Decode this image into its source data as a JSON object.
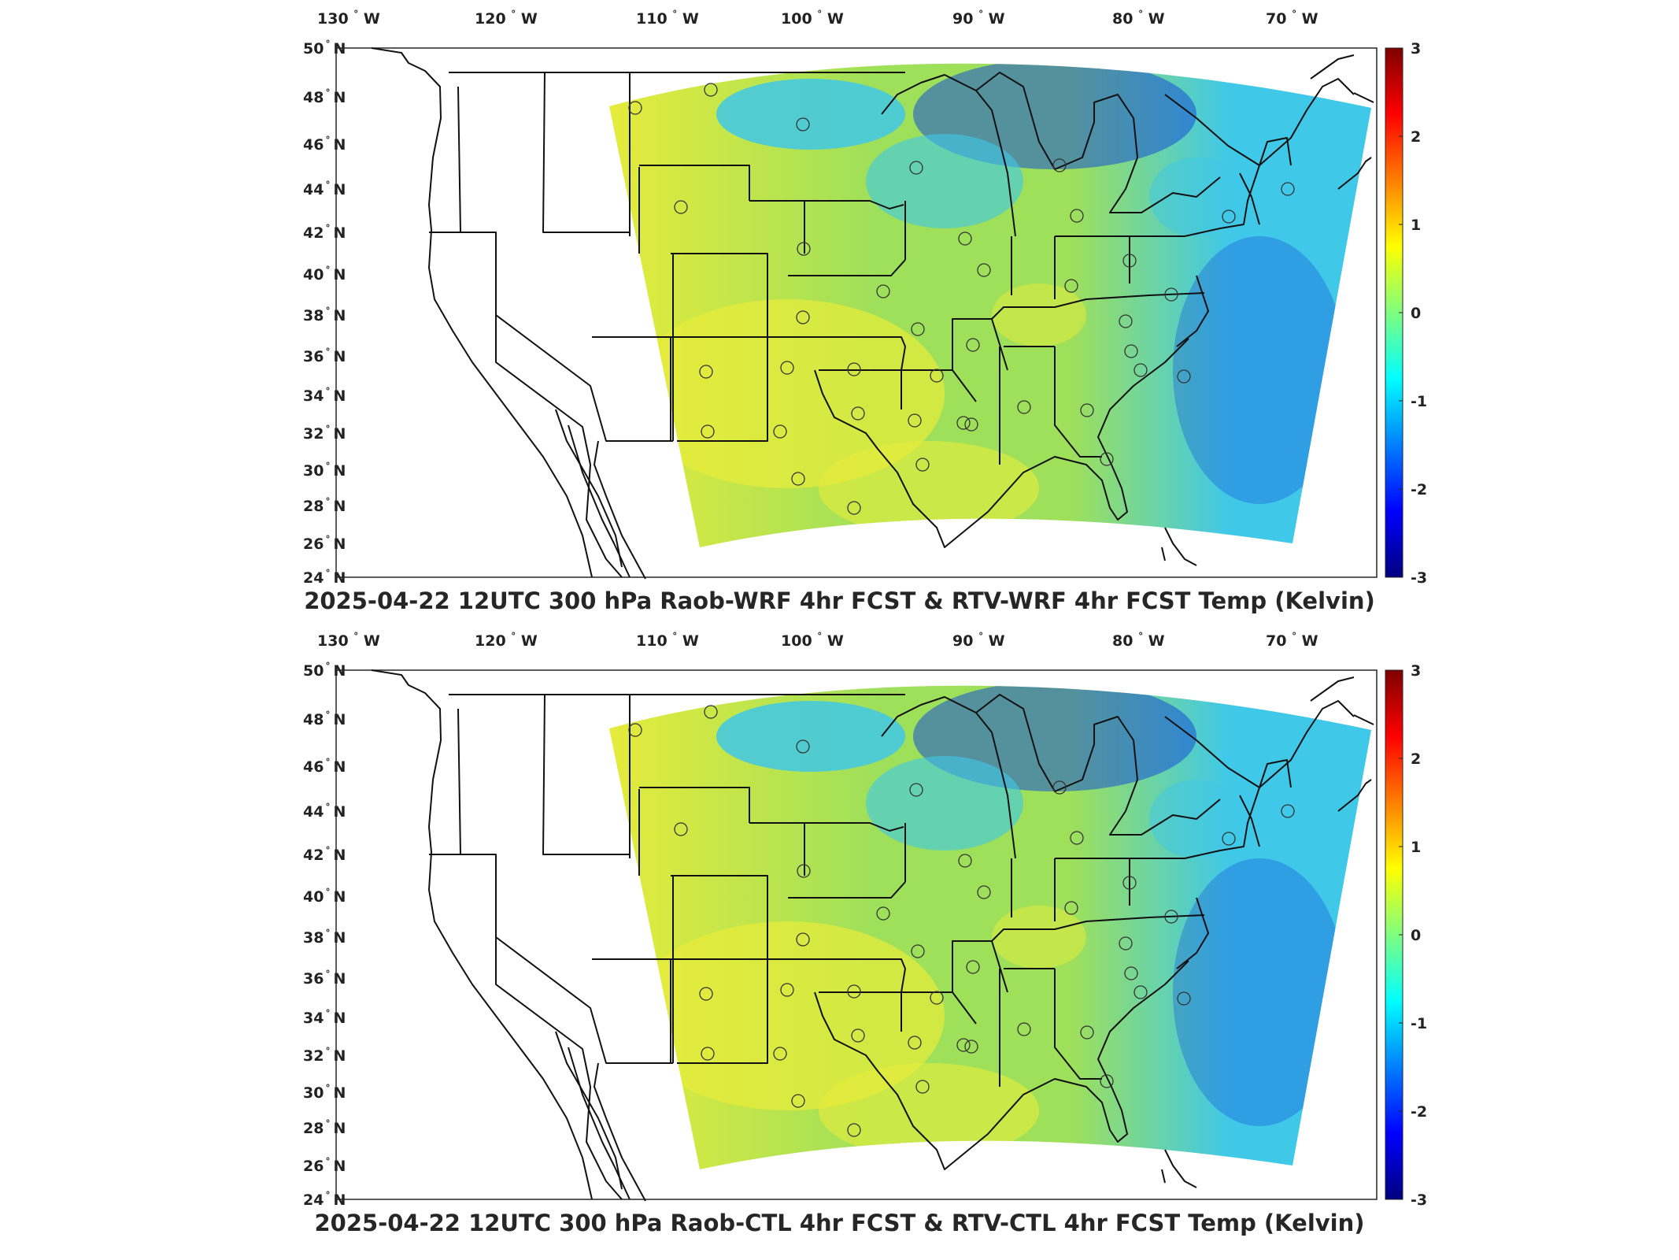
{
  "colorbar": {
    "ticks": [
      "3",
      "2",
      "1",
      "0",
      "-1",
      "-2",
      "-3"
    ]
  },
  "longitude_labels": [
    "130",
    "120",
    "110",
    "100",
    "90",
    "80",
    "70"
  ],
  "latitude_labels": [
    "50",
    "48",
    "46",
    "44",
    "42",
    "40",
    "38",
    "36",
    "34",
    "32",
    "30",
    "28",
    "26",
    "24"
  ],
  "lon_hemisphere": "W",
  "lat_hemisphere": "N",
  "degree_symbol": "°",
  "panels": [
    {
      "title": "2025-04-22 12UTC 300 hPa Raob-WRF 4hr FCST & RTV-WRF 4hr FCST Temp (Kelvin)"
    },
    {
      "title": "2025-04-22 12UTC 300 hPa Raob-CTL 4hr FCST & RTV-CTL 4hr FCST Temp (Kelvin)"
    }
  ],
  "colors": {
    "field_warm": "#e8ec3a",
    "field_neutral": "#9fe05a",
    "field_cool": "#3fc8e8",
    "field_cold": "#1550d6",
    "colormap": [
      "#00007f",
      "#0000ff",
      "#007fff",
      "#00ffff",
      "#7fff7f",
      "#ffff00",
      "#ff7f00",
      "#ff0000",
      "#7f0000"
    ]
  }
}
